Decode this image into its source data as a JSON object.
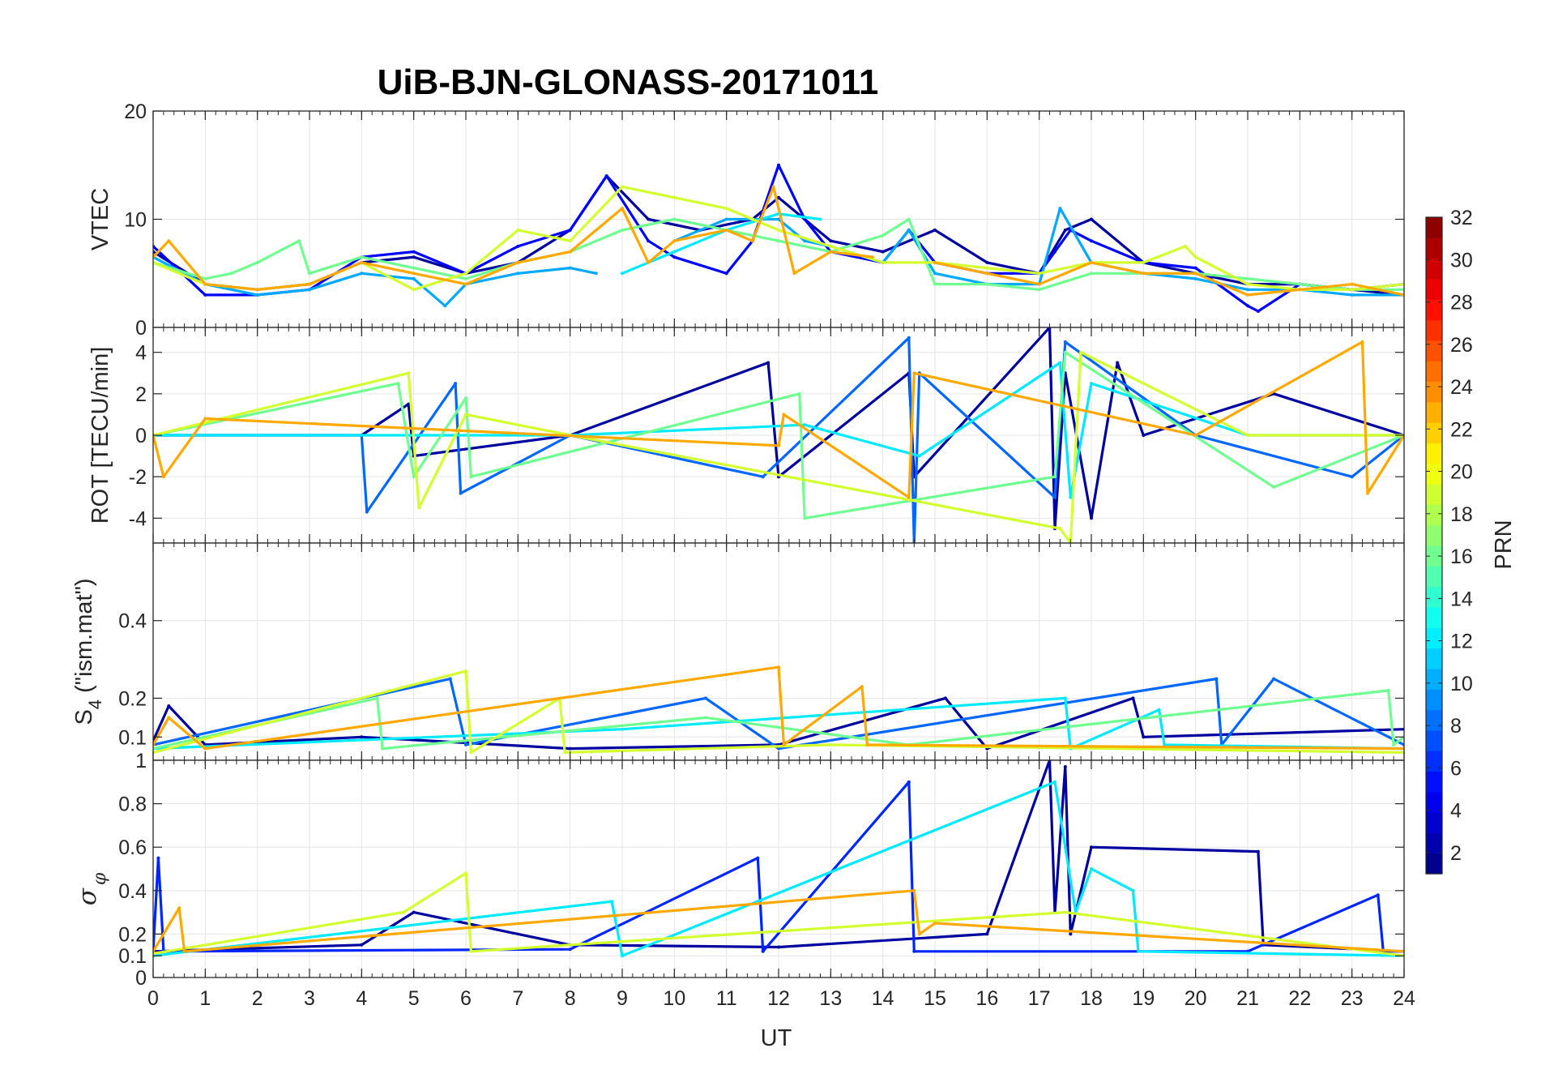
{
  "chart_data": {
    "type": "line",
    "title": "UiB-BJN-GLONASS-20171011",
    "xlabel": "UT",
    "xlim": [
      0,
      24
    ],
    "x_ticks": [
      "0",
      "1",
      "2",
      "3",
      "4",
      "5",
      "6",
      "7",
      "8",
      "9",
      "10",
      "11",
      "12",
      "13",
      "14",
      "15",
      "16",
      "17",
      "18",
      "19",
      "20",
      "21",
      "22",
      "23",
      "24"
    ],
    "colorbar": {
      "label": "PRN",
      "range": [
        1,
        32
      ],
      "ticks": [
        "2",
        "4",
        "6",
        "8",
        "10",
        "12",
        "14",
        "16",
        "18",
        "20",
        "22",
        "24",
        "26",
        "28",
        "30",
        "32"
      ],
      "colormap": "jet"
    },
    "panels": [
      {
        "ylabel": "VTEC",
        "ylim": [
          0,
          20
        ],
        "y_ticks": [
          "0",
          "10",
          "20"
        ],
        "y_tick_values": [
          0,
          10,
          20
        ],
        "series": [
          {
            "name": "PRN 2",
            "prn": 2,
            "x": [
              0,
              1,
              2,
              3,
              4,
              5,
              6,
              7,
              8,
              8.7,
              9.5,
              10.5,
              11.5,
              12,
              13,
              14,
              15,
              16,
              17,
              17.5,
              18,
              19,
              20,
              21,
              22,
              23,
              24
            ],
            "y": [
              7,
              4,
              3.5,
              4,
              6,
              6.5,
              5,
              6,
              9,
              14,
              10,
              9,
              10,
              12,
              8,
              7,
              9,
              6,
              5,
              9,
              10,
              6,
              5,
              4,
              4,
              3.5,
              3
            ]
          },
          {
            "name": "PRN 5",
            "prn": 5,
            "x": [
              0,
              1,
              2,
              3,
              4,
              5,
              6,
              7,
              8,
              8.7,
              9.5,
              10,
              11,
              11.5,
              12,
              12.5,
              13,
              14,
              14.5,
              15,
              16,
              17,
              17.3,
              17.6,
              18,
              19,
              20,
              21,
              21.2,
              22,
              23,
              24
            ],
            "y": [
              7.5,
              3,
              3,
              3.5,
              6.5,
              7,
              5,
              7.5,
              9,
              14,
              8,
              6.5,
              5,
              8,
              15,
              10,
              7,
              6,
              9,
              6,
              5,
              5,
              7,
              9,
              8,
              6,
              5.5,
              2,
              1.5,
              4,
              3.5,
              4
            ]
          },
          {
            "name": "PRN 10",
            "prn": 10,
            "x": [
              0,
              1,
              2,
              3,
              4,
              5,
              5.6,
              6,
              7,
              8,
              8.5,
              9,
              10,
              11,
              12,
              12.5,
              13,
              14,
              14.5,
              15,
              16,
              17,
              17.4,
              18,
              19,
              20,
              21,
              22,
              23,
              24
            ],
            "y": [
              6.5,
              4,
              3,
              3.5,
              5,
              4.5,
              2,
              4,
              5,
              5.5,
              5,
              null,
              8,
              10,
              10,
              8,
              7.5,
              6,
              9,
              5,
              4,
              4,
              11,
              6,
              5,
              4.5,
              3.5,
              3.5,
              3,
              3
            ]
          },
          {
            "name": "PRN 12",
            "prn": 12,
            "x": [
              9,
              10,
              11,
              12,
              12.8
            ],
            "y": [
              5,
              7,
              9,
              10.5,
              10
            ]
          },
          {
            "name": "PRN 16",
            "prn": 16,
            "x": [
              0,
              1,
              1.5,
              2,
              2.8,
              3,
              4,
              5,
              6,
              7,
              8,
              9,
              10,
              11,
              12,
              13,
              14,
              14.5,
              15,
              16,
              17,
              18,
              19,
              20,
              21,
              22,
              23,
              24
            ],
            "y": [
              6,
              4.5,
              5,
              6,
              8,
              5,
              6.5,
              5.5,
              4.5,
              6,
              7,
              9,
              10,
              9,
              8,
              7,
              8.5,
              10,
              4,
              4,
              3.5,
              5,
              5,
              5,
              4.5,
              4,
              3.5,
              3.5
            ]
          },
          {
            "name": "PRN 19",
            "prn": 19,
            "x": [
              0,
              1,
              2,
              3,
              4,
              5,
              6,
              7,
              8,
              9,
              10,
              11,
              11.5,
              12,
              13,
              14,
              15,
              16,
              17,
              18,
              19,
              19.8,
              20,
              21,
              22,
              23,
              24
            ],
            "y": [
              6,
              4,
              3.5,
              4,
              6,
              3.5,
              5,
              9,
              8,
              13,
              12,
              11,
              10,
              9,
              7.5,
              6,
              6,
              5.5,
              5,
              6,
              6,
              7.5,
              6.5,
              4,
              3.5,
              3.5,
              4
            ]
          },
          {
            "name": "PRN 23",
            "prn": 23,
            "x": [
              0,
              0.3,
              1,
              2,
              3,
              4,
              5,
              6,
              7,
              8,
              9,
              9.5,
              10,
              11,
              11.5,
              11.9,
              12.3,
              13,
              13.8,
              14,
              15,
              16,
              17,
              18,
              19,
              20,
              21,
              22,
              23,
              24
            ],
            "y": [
              6.5,
              8,
              4,
              3.5,
              4,
              6,
              5,
              4,
              6,
              7,
              11,
              6,
              8,
              9,
              8,
              13,
              5,
              7,
              6.5,
              null,
              6,
              5,
              4,
              6,
              5,
              5,
              3,
              3.5,
              4,
              3
            ]
          }
        ]
      },
      {
        "ylabel": "ROT [TECU/min]",
        "ylim": [
          -5.2,
          5.2
        ],
        "y_ticks": [
          "-4",
          "-2",
          "0",
          "2",
          "4"
        ],
        "y_tick_values": [
          -4,
          -2,
          0,
          2,
          4
        ],
        "series": [
          {
            "name": "PRN 2",
            "prn": 2,
            "x": [
              0,
              4,
              4.9,
              5,
              8,
              11.8,
              12,
              14.5,
              14.6,
              17.2,
              17.3,
              17.5,
              18,
              18.5,
              19,
              21.5,
              24
            ],
            "y": [
              0,
              0,
              1.5,
              -1,
              0,
              3.5,
              -2,
              3,
              -2,
              5.2,
              -4.5,
              3,
              -4,
              3.5,
              0,
              2,
              0
            ]
          },
          {
            "name": "PRN 8",
            "prn": 8,
            "x": [
              0,
              4,
              4.1,
              5.8,
              5.9,
              8,
              11.7,
              14.5,
              14.6,
              14.7,
              17.3,
              17.5,
              20,
              23,
              24
            ],
            "y": [
              0,
              0,
              -3.7,
              2.5,
              -2.8,
              0,
              -2,
              4.7,
              -5.2,
              3,
              -3,
              4.5,
              0,
              -2,
              0
            ]
          },
          {
            "name": "PRN 12",
            "prn": 12,
            "x": [
              0,
              8,
              12.5,
              14.7,
              17.4,
              17.6,
              18,
              21,
              24
            ],
            "y": [
              0,
              0,
              0.5,
              -1,
              3.5,
              -3,
              2.5,
              0,
              0
            ]
          },
          {
            "name": "PRN 16",
            "prn": 16,
            "x": [
              0,
              4.7,
              5,
              6,
              6.1,
              12.4,
              12.5,
              17.3,
              17.5,
              21.5,
              24
            ],
            "y": [
              0,
              2.5,
              -2,
              1.8,
              -2,
              2,
              -4,
              -2,
              4,
              -2.5,
              0
            ]
          },
          {
            "name": "PRN 19",
            "prn": 19,
            "x": [
              0,
              4.9,
              5.1,
              6,
              8,
              17.4,
              17.6,
              17.8,
              21,
              24
            ],
            "y": [
              0,
              3,
              -3.5,
              1,
              0,
              -4.5,
              -5.2,
              4,
              0,
              0
            ]
          },
          {
            "name": "PRN 23",
            "prn": 23,
            "x": [
              0,
              0.2,
              1,
              12,
              12.1,
              14.5,
              14.6,
              20,
              23.2,
              23.3,
              24
            ],
            "y": [
              0,
              -2,
              0.8,
              -0.5,
              1,
              -3,
              3,
              0,
              4.5,
              -2.8,
              0
            ]
          }
        ]
      },
      {
        "ylabel_parts": [
          "S",
          "4",
          " (\"ism.mat\")"
        ],
        "ylim": [
          0.04,
          0.6
        ],
        "y_ticks": [
          "0.1",
          "0.2",
          "0.4"
        ],
        "y_tick_values": [
          0.1,
          0.2,
          0.4
        ],
        "series": [
          {
            "name": "PRN 2",
            "prn": 2,
            "x": [
              0,
              0.3,
              1,
              4,
              8,
              12,
              15.2,
              16,
              18.8,
              19,
              24
            ],
            "y": [
              0.09,
              0.18,
              0.08,
              0.1,
              0.07,
              0.08,
              0.2,
              0.07,
              0.2,
              0.1,
              0.12
            ]
          },
          {
            "name": "PRN 8",
            "prn": 8,
            "x": [
              0,
              5.7,
              6,
              10.6,
              12,
              20.4,
              20.5,
              21.5,
              24
            ],
            "y": [
              0.08,
              0.25,
              0.08,
              0.2,
              0.07,
              0.25,
              0.08,
              0.25,
              0.08
            ]
          },
          {
            "name": "PRN 12",
            "prn": 12,
            "x": [
              0,
              9,
              17.5,
              17.6,
              19.3,
              19.4,
              24
            ],
            "y": [
              0.07,
              0.12,
              0.2,
              0.07,
              0.17,
              0.08,
              0.07
            ]
          },
          {
            "name": "PRN 16",
            "prn": 16,
            "x": [
              0,
              4.3,
              4.4,
              10.6,
              14.5,
              23.7,
              23.8,
              24
            ],
            "y": [
              0.07,
              0.2,
              0.07,
              0.15,
              0.08,
              0.22,
              0.08,
              0.1
            ]
          },
          {
            "name": "PRN 19",
            "prn": 19,
            "x": [
              0,
              6,
              6.1,
              7.8,
              7.9,
              13,
              24
            ],
            "y": [
              0.06,
              0.27,
              0.06,
              0.2,
              0.06,
              0.08,
              0.06
            ]
          },
          {
            "name": "PRN 23",
            "prn": 23,
            "x": [
              0,
              0.3,
              1,
              12,
              12.1,
              13.6,
              13.7,
              24
            ],
            "y": [
              0.08,
              0.15,
              0.07,
              0.28,
              0.08,
              0.23,
              0.08,
              0.07
            ]
          }
        ]
      },
      {
        "ylabel_parts": [
          "σ",
          "φ"
        ],
        "ylim": [
          0,
          1
        ],
        "y_ticks": [
          "0",
          "0.1",
          "0.2",
          "0.4",
          "0.6",
          "0.8",
          "1"
        ],
        "y_tick_values": [
          0,
          0.1,
          0.2,
          0.4,
          0.6,
          0.8,
          1
        ],
        "series": [
          {
            "name": "PRN 2",
            "prn": 2,
            "x": [
              0,
              4,
              5,
              8,
              12,
              16,
              17.2,
              17.3,
              17.5,
              17.6,
              18,
              21.2,
              21.3,
              24
            ],
            "y": [
              0.12,
              0.15,
              0.3,
              0.15,
              0.14,
              0.2,
              1,
              0.3,
              0.97,
              0.2,
              0.6,
              0.58,
              0.15,
              0.12
            ]
          },
          {
            "name": "PRN 6",
            "prn": 6,
            "x": [
              0,
              0.1,
              0.2,
              8,
              11.6,
              11.7,
              14.5,
              14.6,
              21,
              23.5,
              23.6,
              24
            ],
            "y": [
              0.12,
              0.55,
              0.12,
              0.13,
              0.55,
              0.12,
              0.9,
              0.12,
              0.12,
              0.38,
              0.12,
              0.12
            ]
          },
          {
            "name": "PRN 12",
            "prn": 12,
            "x": [
              0,
              8.8,
              9,
              17.3,
              17.5,
              17.7,
              18,
              18.8,
              18.9,
              24
            ],
            "y": [
              0.1,
              0.35,
              0.1,
              0.9,
              0.6,
              0.3,
              0.5,
              0.4,
              0.12,
              0.1
            ]
          },
          {
            "name": "PRN 19",
            "prn": 19,
            "x": [
              0,
              4.8,
              6,
              6.1,
              17.5,
              24
            ],
            "y": [
              0.11,
              0.3,
              0.48,
              0.12,
              0.3,
              0.1
            ]
          },
          {
            "name": "PRN 23",
            "prn": 23,
            "x": [
              0,
              0.5,
              0.6,
              14.6,
              14.7,
              15,
              24
            ],
            "y": [
              0.12,
              0.32,
              0.12,
              0.4,
              0.2,
              0.25,
              0.12
            ]
          }
        ]
      }
    ]
  }
}
